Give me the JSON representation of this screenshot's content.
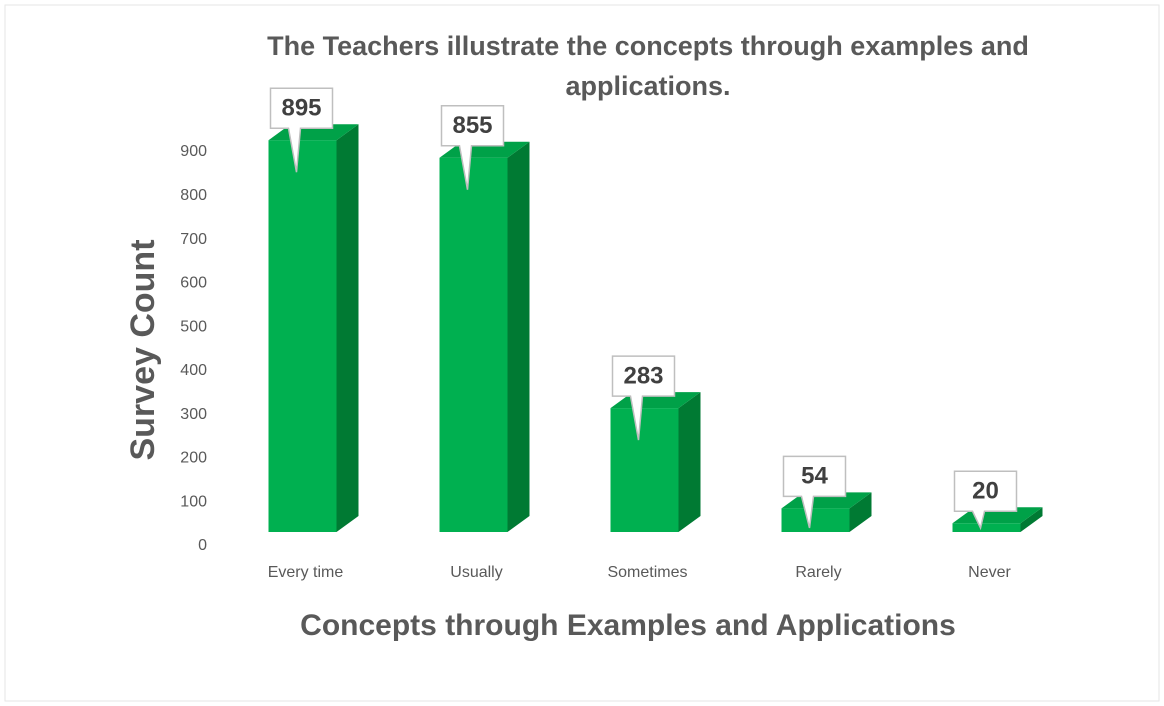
{
  "chart_data": {
    "type": "bar3d",
    "title": "The Teachers illustrate the concepts through examples and applications.",
    "x_label": "Concepts through Examples and Applications",
    "y_label": "Survey Count",
    "categories": [
      "Every time",
      "Usually",
      "Sometimes",
      "Rarely",
      "Never"
    ],
    "values": [
      895,
      855,
      283,
      54,
      20
    ],
    "color": "#00b050",
    "ylim": [
      0,
      900
    ],
    "yticks": [
      0,
      100,
      200,
      300,
      400,
      500,
      600,
      700,
      800,
      900
    ],
    "grid": false
  }
}
